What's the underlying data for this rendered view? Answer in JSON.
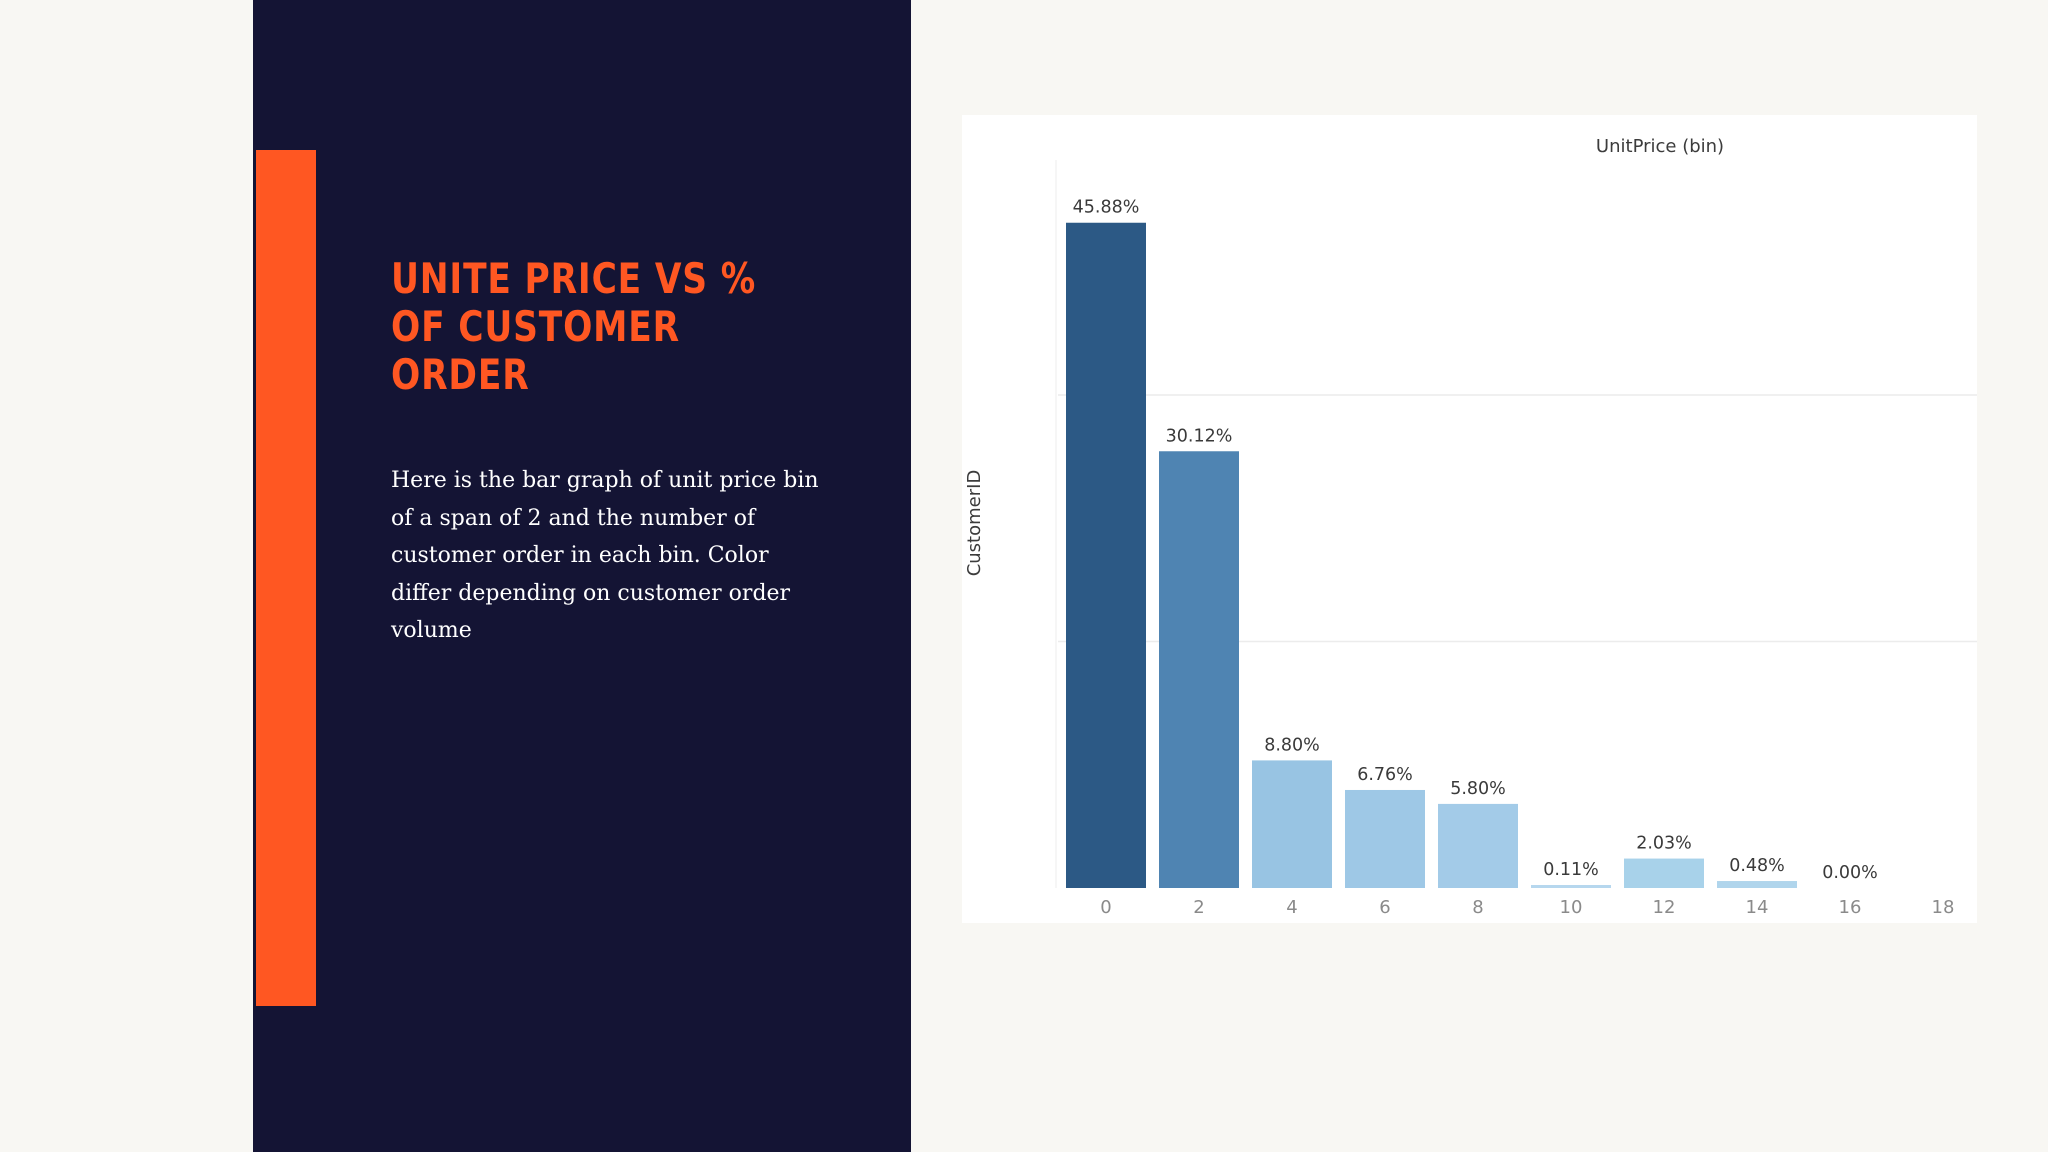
{
  "slide": {
    "title": "UNITE PRICE VS % OF CUSTOMER ORDER",
    "body": "Here is the bar graph of unit price bin of a span of 2 and the number of customer order in each bin. Color differ depending on customer order volume",
    "colors": {
      "panel": "#141434",
      "accent": "#ff5722",
      "background": "#f8f7f3"
    }
  },
  "chart_data": {
    "type": "bar",
    "title": "",
    "top_label": "UnitPrice (bin)",
    "ylabel": "CustomerID",
    "xlabel": "",
    "x_ticks": [
      "0",
      "2",
      "4",
      "6",
      "8",
      "10",
      "12",
      "14",
      "16",
      "18"
    ],
    "categories": [
      "0",
      "2",
      "4",
      "6",
      "8",
      "10",
      "12",
      "14",
      "16"
    ],
    "values": [
      45.88,
      30.12,
      8.8,
      6.76,
      5.8,
      0.11,
      2.03,
      0.48,
      0.0
    ],
    "labels": [
      "45.88%",
      "30.12%",
      "8.80%",
      "6.76%",
      "5.80%",
      "0.11%",
      "2.03%",
      "0.48%",
      "0.00%"
    ],
    "bar_colors": [
      "#2c5985",
      "#4f84b2",
      "#98c4e3",
      "#9ec8e6",
      "#a3cbe8",
      "#b6d7ee",
      "#a8d2ea",
      "#b0d5ec",
      "#c2dff2"
    ],
    "ylim": [
      0,
      50
    ],
    "gridlines_at": [
      17,
      34
    ],
    "grid": "horizontal",
    "legend": "none"
  }
}
